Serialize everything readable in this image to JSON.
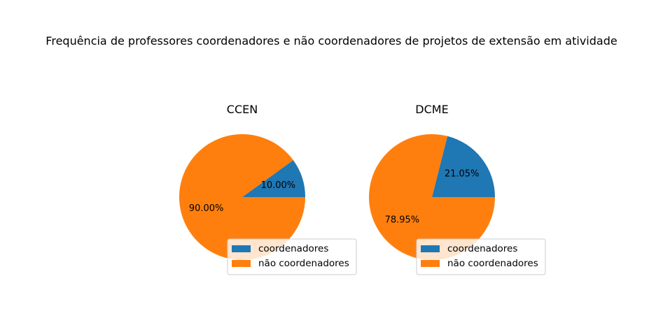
{
  "figure": {
    "suptitle": "Frequência de professores coordenadores e não coordenadores de projetos de extensão em atividade"
  },
  "chart_data": [
    {
      "type": "pie",
      "title": "CCEN",
      "labels": [
        "coordenadores",
        "não coordenadores"
      ],
      "values": [
        10.0,
        90.0
      ],
      "value_labels": [
        "10.00%",
        "90.00%"
      ],
      "colors": [
        "#1f77b4",
        "#ff7f0e"
      ],
      "legend": {
        "entries": [
          "coordenadores",
          "não coordenadores"
        ],
        "placement": "lower-right"
      }
    },
    {
      "type": "pie",
      "title": "DCME",
      "labels": [
        "coordenadores",
        "não coordenadores"
      ],
      "values": [
        21.05,
        78.95
      ],
      "value_labels": [
        "21.05%",
        "78.95%"
      ],
      "colors": [
        "#1f77b4",
        "#ff7f0e"
      ],
      "legend": {
        "entries": [
          "coordenadores",
          "não coordenadores"
        ],
        "placement": "lower-right"
      }
    }
  ]
}
